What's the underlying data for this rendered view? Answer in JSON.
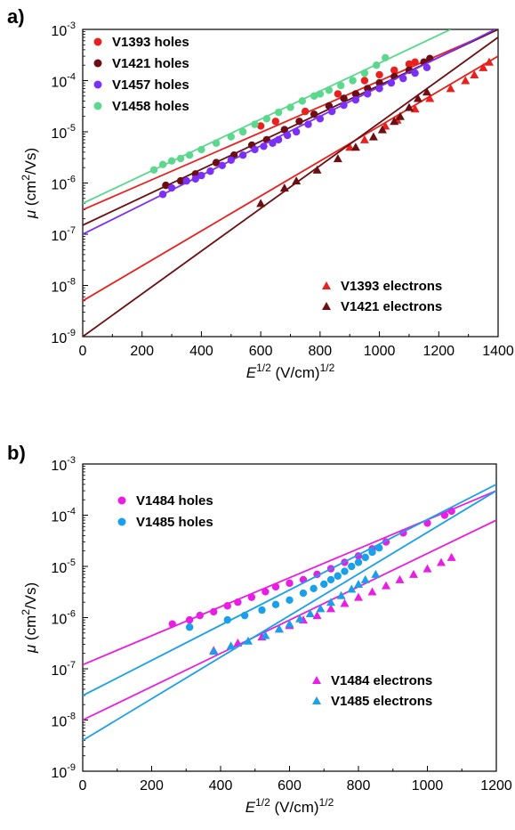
{
  "chart_data": [
    {
      "type": "scatter",
      "panel_label": "a)",
      "xlabel": {
        "base": "E",
        "sup1": "1/2",
        "mid": " (V/cm)",
        "sup2": "1/2"
      },
      "ylabel": {
        "base": "μ",
        "mid": " (cm",
        "sup": "2",
        "end": "/Vs)"
      },
      "xlim": [
        0,
        1400
      ],
      "ylim": [
        1e-09,
        0.001
      ],
      "y_scale": "log",
      "x_ticks": [
        "0",
        "200",
        "400",
        "600",
        "800",
        "1000",
        "1200",
        "1400"
      ],
      "y_ticks": [
        {
          "base": "10",
          "exp": "-9"
        },
        {
          "base": "10",
          "exp": "-8"
        },
        {
          "base": "10",
          "exp": "-7"
        },
        {
          "base": "10",
          "exp": "-6"
        },
        {
          "base": "10",
          "exp": "-5"
        },
        {
          "base": "10",
          "exp": "-4"
        },
        {
          "base": "10",
          "exp": "-3"
        }
      ],
      "grid": false,
      "legends": [
        {
          "placement": "top-left",
          "entries": [
            "V1393 holes",
            "V1421 holes",
            "V1457 holes",
            "V1458 holes"
          ]
        },
        {
          "placement": "bottom-right",
          "entries": [
            "V1393 electrons",
            "V1421 electrons"
          ]
        }
      ],
      "series": [
        {
          "name": "V1393 holes",
          "color": "#e8211f",
          "marker": "circle",
          "fit": [
            [
              0,
              3e-07
            ],
            [
              1400,
              0.001
            ]
          ],
          "points": [
            [
              600,
              1.3e-05
            ],
            [
              650,
              1.6e-05
            ],
            [
              750,
              2.5e-05
            ],
            [
              860,
              5.5e-05
            ],
            [
              950,
              0.0001
            ],
            [
              1000,
              0.00013
            ],
            [
              1050,
              0.00016
            ],
            [
              1100,
              0.00021
            ],
            [
              1120,
              0.00023
            ]
          ]
        },
        {
          "name": "V1421 holes",
          "color": "#6b0f12",
          "marker": "circle",
          "fit": [
            [
              0,
              1.5e-07
            ],
            [
              1400,
              0.001
            ]
          ],
          "points": [
            [
              280,
              9e-07
            ],
            [
              330,
              1.1e-06
            ],
            [
              380,
              1.5e-06
            ],
            [
              450,
              2.5e-06
            ],
            [
              510,
              3.5e-06
            ],
            [
              570,
              5.5e-06
            ],
            [
              620,
              7e-06
            ],
            [
              680,
              1.1e-05
            ],
            [
              730,
              1.6e-05
            ],
            [
              780,
              2.2e-05
            ],
            [
              830,
              3.2e-05
            ],
            [
              880,
              4.5e-05
            ],
            [
              920,
              5.5e-05
            ],
            [
              960,
              7e-05
            ],
            [
              1000,
              9e-05
            ],
            [
              1050,
              0.00012
            ],
            [
              1100,
              0.00016
            ],
            [
              1150,
              0.00023
            ],
            [
              1170,
              0.00027
            ]
          ]
        },
        {
          "name": "V1457 holes",
          "color": "#7b2ff7",
          "marker": "circle",
          "fit": [
            [
              0,
              1e-07
            ],
            [
              1390,
              0.001
            ]
          ],
          "points": [
            [
              270,
              6e-07
            ],
            [
              300,
              8e-07
            ],
            [
              350,
              1.1e-06
            ],
            [
              380,
              1.2e-06
            ],
            [
              400,
              1.4e-06
            ],
            [
              430,
              1.7e-06
            ],
            [
              470,
              2.2e-06
            ],
            [
              500,
              2.8e-06
            ],
            [
              540,
              3.5e-06
            ],
            [
              580,
              4.5e-06
            ],
            [
              610,
              5.2e-06
            ],
            [
              640,
              6e-06
            ],
            [
              660,
              7e-06
            ],
            [
              690,
              8.5e-06
            ],
            [
              720,
              1e-05
            ],
            [
              760,
              1.4e-05
            ],
            [
              800,
              1.8e-05
            ],
            [
              840,
              2.5e-05
            ],
            [
              880,
              3.3e-05
            ],
            [
              920,
              4.2e-05
            ],
            [
              960,
              5.5e-05
            ],
            [
              1000,
              7e-05
            ],
            [
              1040,
              9e-05
            ],
            [
              1080,
              0.00011
            ],
            [
              1120,
              0.00014
            ],
            [
              1160,
              0.00018
            ]
          ]
        },
        {
          "name": "V1458 holes",
          "color": "#5bd88d",
          "marker": "circle",
          "fit": [
            [
              0,
              4e-07
            ],
            [
              1240,
              0.001
            ]
          ],
          "points": [
            [
              240,
              1.8e-06
            ],
            [
              270,
              2.3e-06
            ],
            [
              300,
              2.7e-06
            ],
            [
              330,
              3e-06
            ],
            [
              360,
              3.5e-06
            ],
            [
              400,
              4.5e-06
            ],
            [
              450,
              6e-06
            ],
            [
              500,
              8e-06
            ],
            [
              540,
              1e-05
            ],
            [
              580,
              1.4e-05
            ],
            [
              620,
              1.8e-05
            ],
            [
              660,
              2.4e-05
            ],
            [
              700,
              3e-05
            ],
            [
              740,
              4e-05
            ],
            [
              780,
              5e-05
            ],
            [
              800,
              5.5e-05
            ],
            [
              830,
              6.5e-05
            ],
            [
              870,
              8e-05
            ],
            [
              910,
              0.0001
            ],
            [
              950,
              0.00014
            ],
            [
              990,
              0.0002
            ],
            [
              1020,
              0.00028
            ]
          ]
        },
        {
          "name": "V1393 electrons",
          "color": "#e8211f",
          "marker": "triangle",
          "fit": [
            [
              0,
              5e-09
            ],
            [
              1400,
              0.0003
            ]
          ],
          "points": [
            [
              900,
              5e-06
            ],
            [
              950,
              7e-06
            ],
            [
              1020,
              1.3e-05
            ],
            [
              1060,
              1.7e-05
            ],
            [
              1120,
              2.8e-05
            ],
            [
              1170,
              4.5e-05
            ],
            [
              1240,
              7e-05
            ],
            [
              1290,
              0.0001
            ],
            [
              1320,
              0.00013
            ],
            [
              1350,
              0.00018
            ],
            [
              1370,
              0.00023
            ]
          ]
        },
        {
          "name": "V1421 electrons",
          "color": "#6b0f12",
          "marker": "triangle",
          "fit": [
            [
              0,
              1e-09
            ],
            [
              1400,
              0.0007
            ]
          ],
          "points": [
            [
              600,
              4e-07
            ],
            [
              680,
              8e-07
            ],
            [
              720,
              1.1e-06
            ],
            [
              790,
              1.8e-06
            ],
            [
              860,
              3e-06
            ],
            [
              920,
              5e-06
            ],
            [
              980,
              8e-06
            ],
            [
              1010,
              1.1e-05
            ],
            [
              1050,
              1.6e-05
            ],
            [
              1070,
              2e-05
            ],
            [
              1100,
              3e-05
            ],
            [
              1130,
              4.5e-05
            ],
            [
              1160,
              6e-05
            ]
          ]
        }
      ]
    },
    {
      "type": "scatter",
      "panel_label": "b)",
      "xlabel": {
        "base": "E",
        "sup1": "1/2",
        "mid": " (V/cm)",
        "sup2": "1/2"
      },
      "ylabel": {
        "base": "μ",
        "mid": " (cm",
        "sup": "2",
        "end": "/Vs)"
      },
      "xlim": [
        0,
        1200
      ],
      "ylim": [
        1e-09,
        0.001
      ],
      "y_scale": "log",
      "x_ticks": [
        "0",
        "200",
        "400",
        "600",
        "800",
        "1000",
        "1200"
      ],
      "y_ticks": [
        {
          "base": "10",
          "exp": "-9"
        },
        {
          "base": "10",
          "exp": "-8"
        },
        {
          "base": "10",
          "exp": "-7"
        },
        {
          "base": "10",
          "exp": "-6"
        },
        {
          "base": "10",
          "exp": "-5"
        },
        {
          "base": "10",
          "exp": "-4"
        },
        {
          "base": "10",
          "exp": "-3"
        }
      ],
      "grid": false,
      "legends": [
        {
          "placement": "top-left",
          "entries": [
            "V1484 holes",
            "V1485 holes"
          ]
        },
        {
          "placement": "bottom-right",
          "entries": [
            "V1484 electrons",
            "V1485 electrons"
          ]
        }
      ],
      "series": [
        {
          "name": "V1484 holes",
          "color": "#e81ee3",
          "marker": "circle",
          "fit": [
            [
              0,
              1.2e-07
            ],
            [
              1200,
              0.0003
            ]
          ],
          "points": [
            [
              260,
              7.5e-07
            ],
            [
              310,
              9e-07
            ],
            [
              340,
              1.1e-06
            ],
            [
              380,
              1.3e-06
            ],
            [
              420,
              1.7e-06
            ],
            [
              450,
              2e-06
            ],
            [
              490,
              2.5e-06
            ],
            [
              530,
              3.2e-06
            ],
            [
              560,
              4e-06
            ],
            [
              600,
              4.7e-06
            ],
            [
              640,
              5.5e-06
            ],
            [
              680,
              7e-06
            ],
            [
              720,
              9e-06
            ],
            [
              760,
              1.2e-05
            ],
            [
              800,
              1.6e-05
            ],
            [
              840,
              2.2e-05
            ],
            [
              880,
              3e-05
            ],
            [
              930,
              4.5e-05
            ],
            [
              1000,
              7e-05
            ],
            [
              1050,
              0.0001
            ],
            [
              1070,
              0.00012
            ]
          ]
        },
        {
          "name": "V1485 holes",
          "color": "#1aa0e8",
          "marker": "circle",
          "fit": [
            [
              0,
              3e-08
            ],
            [
              1200,
              0.0004
            ]
          ],
          "points": [
            [
              310,
              6.5e-07
            ],
            [
              420,
              9e-07
            ],
            [
              470,
              1.1e-06
            ],
            [
              520,
              1.4e-06
            ],
            [
              560,
              1.8e-06
            ],
            [
              600,
              2.2e-06
            ],
            [
              640,
              3e-06
            ],
            [
              670,
              3.7e-06
            ],
            [
              700,
              4.5e-06
            ],
            [
              720,
              5.5e-06
            ],
            [
              740,
              6.5e-06
            ],
            [
              760,
              8e-06
            ],
            [
              780,
              1e-05
            ],
            [
              800,
              1.2e-05
            ],
            [
              820,
              1.5e-05
            ],
            [
              840,
              1.9e-05
            ],
            [
              860,
              2.3e-05
            ]
          ]
        },
        {
          "name": "V1484 electrons",
          "color": "#e81ee3",
          "marker": "triangle",
          "fit": [
            [
              0,
              1e-08
            ],
            [
              1200,
              8e-05
            ]
          ],
          "points": [
            [
              380,
              2.3e-07
            ],
            [
              450,
              3.2e-07
            ],
            [
              520,
              4.2e-07
            ],
            [
              570,
              6e-07
            ],
            [
              600,
              7e-07
            ],
            [
              640,
              9e-07
            ],
            [
              680,
              1.1e-06
            ],
            [
              720,
              1.5e-06
            ],
            [
              760,
              1.9e-06
            ],
            [
              800,
              2.5e-06
            ],
            [
              840,
              3.2e-06
            ],
            [
              880,
              4.2e-06
            ],
            [
              920,
              5.5e-06
            ],
            [
              960,
              7e-06
            ],
            [
              1000,
              9e-06
            ],
            [
              1040,
              1.2e-05
            ],
            [
              1070,
              1.5e-05
            ]
          ]
        },
        {
          "name": "V1485 electrons",
          "color": "#1aa0e8",
          "marker": "triangle",
          "fit": [
            [
              0,
              4e-09
            ],
            [
              1200,
              0.0003
            ]
          ],
          "points": [
            [
              380,
              2.2e-07
            ],
            [
              430,
              2.8e-07
            ],
            [
              480,
              3.5e-07
            ],
            [
              530,
              4.5e-07
            ],
            [
              570,
              6e-07
            ],
            [
              600,
              7.5e-07
            ],
            [
              630,
              9.5e-07
            ],
            [
              660,
              1.2e-06
            ],
            [
              690,
              1.5e-06
            ],
            [
              720,
              2e-06
            ],
            [
              750,
              2.7e-06
            ],
            [
              780,
              3.6e-06
            ],
            [
              800,
              4.5e-06
            ],
            [
              820,
              5.5e-06
            ],
            [
              850,
              7e-06
            ]
          ]
        }
      ]
    }
  ]
}
